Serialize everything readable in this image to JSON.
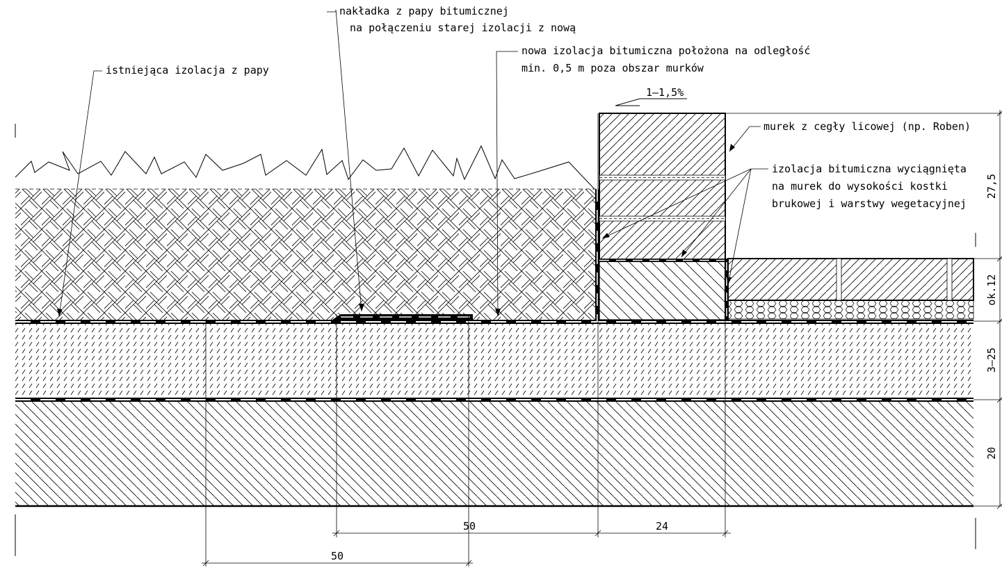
{
  "annotations": {
    "overlay": [
      "nakładka z papy bitumicznej",
      "na połączeniu starej izolacji z nową"
    ],
    "new_insulation": [
      "nowa izolacja bitumiczna położona na odległość",
      "min. 0,5 m poza obszar murków"
    ],
    "existing_insulation": "istniejąca izolacja z papy",
    "slope": "1–1,5%",
    "wall": "murek z cegły licowej (np. Roben)",
    "raised_insulation": [
      "izolacja bitumiczna wyciągnięta",
      "na murek do wysokości kostki",
      "brukowej i warstwy wegetacyjnej"
    ]
  },
  "dimensions": {
    "right": [
      "27,5",
      "ok.12",
      "3–25",
      "20"
    ],
    "bottom": [
      "50",
      "24",
      "50"
    ]
  }
}
